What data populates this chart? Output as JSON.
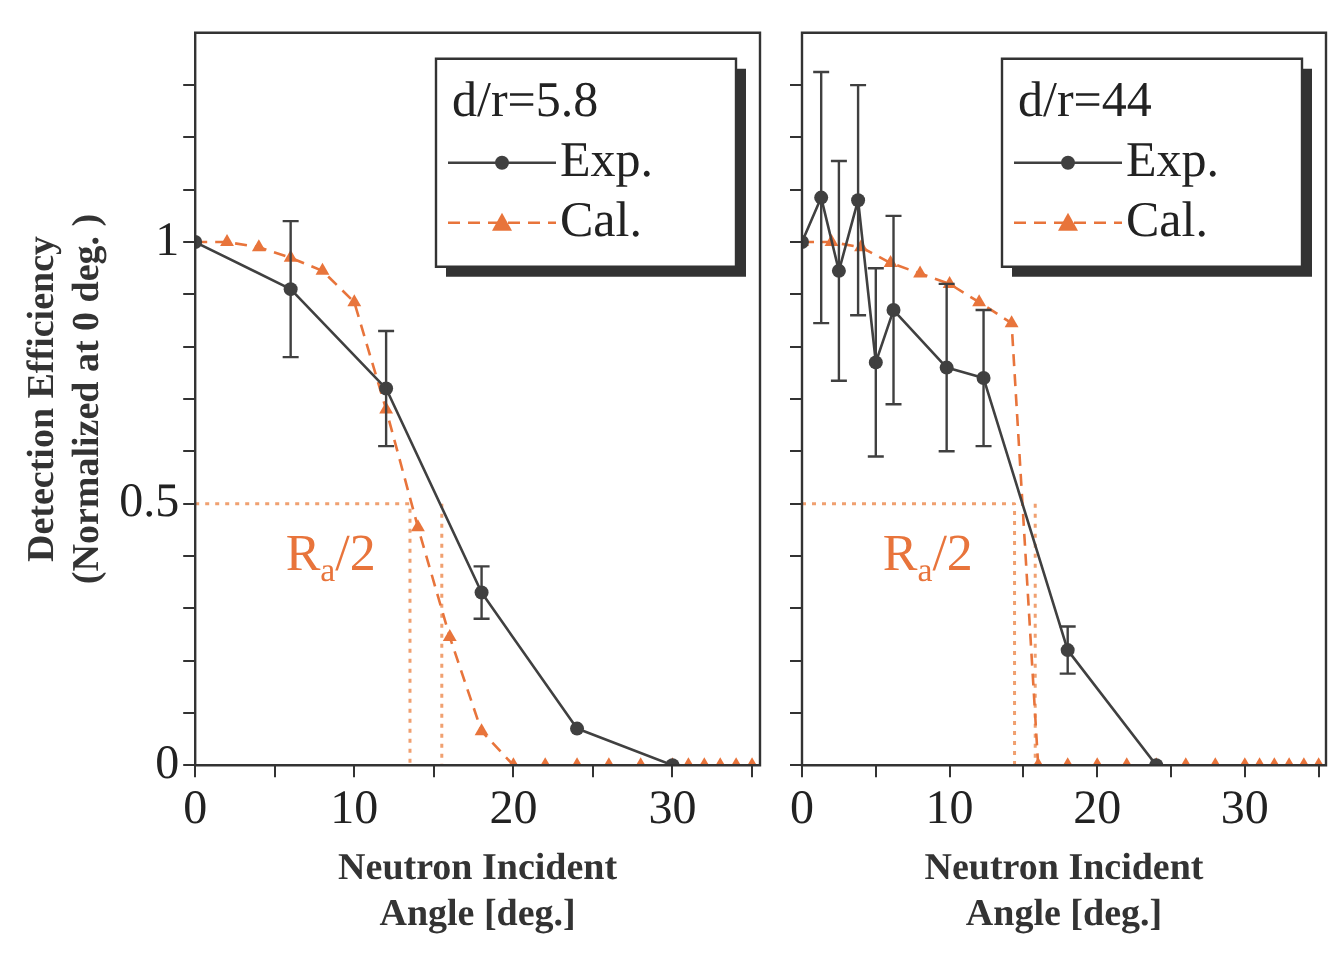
{
  "chart_data": [
    {
      "type": "line",
      "xlabel": "Neutron Incident\nAngle [deg.]",
      "ylabel": "Detection Efficiency\n(Normalized at 0 deg. )",
      "legend_title": "d/r=5.8",
      "legend": "top right",
      "xlim": [
        0,
        35.5
      ],
      "ylim": [
        0,
        1.4
      ],
      "xticks": [
        0,
        {
          "value": 5,
          "label": null
        },
        10,
        {
          "value": 15,
          "label": null
        },
        20,
        {
          "value": 25,
          "label": null
        },
        30,
        {
          "value": 35,
          "label": null
        }
      ],
      "yticks": [
        0,
        {
          "value": 0.1,
          "label": null
        },
        {
          "value": 0.2,
          "label": null
        },
        {
          "value": 0.3,
          "label": null
        },
        {
          "value": 0.4,
          "label": null
        },
        0.5,
        {
          "value": 0.6,
          "label": null
        },
        {
          "value": 0.7,
          "label": null
        },
        {
          "value": 0.8,
          "label": null
        },
        {
          "value": 0.9,
          "label": null
        },
        1,
        {
          "value": 1.1,
          "label": null
        },
        {
          "value": 1.2,
          "label": null
        },
        {
          "value": 1.3,
          "label": null
        }
      ],
      "annotations": [
        "R$_{a}$/2"
      ],
      "series": [
        {
          "name": "Exp.",
          "color": "#404040",
          "marker": "circle",
          "line_style": "solid",
          "x": [
            0,
            6,
            12,
            18,
            24,
            30
          ],
          "values": [
            1,
            0.91,
            0.72,
            0.33,
            0.07,
            0
          ],
          "errors": [
            null,
            0.13,
            0.11,
            0.05,
            null,
            null
          ]
        },
        {
          "name": "Cal.",
          "color": "#e8743b",
          "marker": "triangle",
          "line_style": "dashed",
          "x": [
            0,
            2,
            4,
            6,
            8,
            10,
            12,
            14,
            16,
            18,
            20,
            22,
            24,
            26,
            28,
            30,
            31,
            32,
            33,
            34,
            35
          ],
          "values": [
            1,
            1,
            0.99,
            0.97,
            0.945,
            0.885,
            0.68,
            0.455,
            0.245,
            0.065,
            0,
            0,
            0,
            0,
            0,
            0,
            0,
            0,
            0,
            0,
            0
          ]
        },
        {
          "color": "#f0a070",
          "marker": "none",
          "line_style": "dotted",
          "x": [
            0,
            13.5,
            13.5
          ],
          "values": [
            0.5,
            0.5,
            0
          ]
        },
        {
          "color": "#f0a070",
          "marker": "none",
          "line_style": "dotted",
          "x": [
            15.5,
            15.5
          ],
          "values": [
            0.5,
            0
          ]
        }
      ]
    },
    {
      "type": "line",
      "xlabel": "Neutron Incident\nAngle [deg.]",
      "legend_title": "d/r=44",
      "legend": "top right",
      "tick_labels": "x",
      "xlim": [
        0,
        35.5
      ],
      "ylim": [
        0,
        1.4
      ],
      "xticks": [
        0,
        {
          "value": 5,
          "label": null
        },
        10,
        {
          "value": 15,
          "label": null
        },
        20,
        {
          "value": 25,
          "label": null
        },
        30,
        {
          "value": 35,
          "label": null
        }
      ],
      "yticks": [
        0,
        {
          "value": 0.1,
          "label": null
        },
        {
          "value": 0.2,
          "label": null
        },
        {
          "value": 0.3,
          "label": null
        },
        {
          "value": 0.4,
          "label": null
        },
        0.5,
        {
          "value": 0.6,
          "label": null
        },
        {
          "value": 0.7,
          "label": null
        },
        {
          "value": 0.8,
          "label": null
        },
        {
          "value": 0.9,
          "label": null
        },
        1,
        {
          "value": 1.1,
          "label": null
        },
        {
          "value": 1.2,
          "label": null
        },
        {
          "value": 1.3,
          "label": null
        }
      ],
      "annotations": [
        "R$_{a}$/2"
      ],
      "series": [
        {
          "name": "Exp.",
          "color": "#404040",
          "marker": "circle",
          "line_style": "solid",
          "x": [
            0,
            1.3,
            2.5,
            3.8,
            5,
            6.2,
            9.8,
            12.3,
            18,
            24
          ],
          "values": [
            1,
            1.085,
            0.945,
            1.08,
            0.77,
            0.87,
            0.76,
            0.74,
            0.22,
            0
          ],
          "errors": [
            null,
            0.24,
            0.21,
            0.22,
            0.18,
            0.18,
            0.16,
            0.13,
            0.045,
            null
          ]
        },
        {
          "name": "Cal.",
          "color": "#e8743b",
          "marker": "triangle",
          "line_style": "dashed",
          "x": [
            0,
            2,
            4,
            6,
            8,
            10,
            12,
            14.2,
            16,
            18,
            20,
            22,
            24,
            26,
            28,
            30,
            31,
            32,
            33,
            34,
            35
          ],
          "values": [
            1,
            1,
            0.99,
            0.96,
            0.94,
            0.92,
            0.885,
            0.845,
            0,
            0,
            0,
            0,
            0,
            0,
            0,
            0,
            0,
            0,
            0,
            0,
            0
          ]
        },
        {
          "color": "#f0a070",
          "marker": "none",
          "line_style": "dotted",
          "x": [
            0,
            14.4,
            14.4
          ],
          "values": [
            0.5,
            0.5,
            0
          ]
        },
        {
          "color": "#f0a070",
          "marker": "none",
          "line_style": "dotted",
          "x": [
            15.8,
            15.8
          ],
          "values": [
            0.5,
            0
          ]
        }
      ]
    }
  ]
}
